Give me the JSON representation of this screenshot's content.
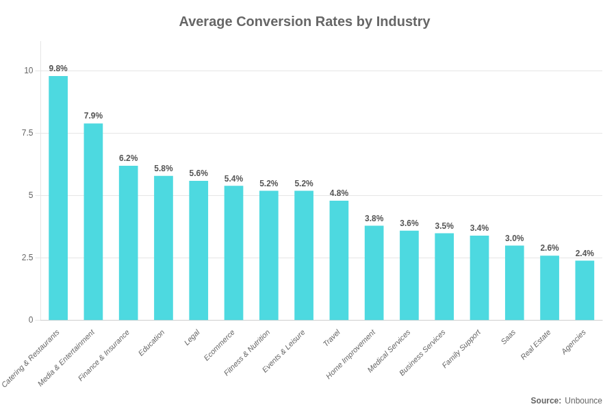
{
  "chart_data": {
    "type": "bar",
    "title": "Average Conversion Rates by Industry",
    "categories": [
      "Catering & Restaurants",
      "Media & Entertainment",
      "Finance & Insurance",
      "Education",
      "Legal",
      "Ecommerce",
      "Fitness & Nutrition",
      "Events & Leisure",
      "Travel",
      "Home Improvement",
      "Medical Services",
      "Business Services",
      "Family Support",
      "Saas",
      "Real Estate",
      "Agencies"
    ],
    "values": [
      9.8,
      7.9,
      6.2,
      5.8,
      5.6,
      5.4,
      5.2,
      5.2,
      4.8,
      3.8,
      3.6,
      3.5,
      3.4,
      3.0,
      2.6,
      2.4
    ],
    "value_labels": [
      "9.8%",
      "7.9%",
      "6.2%",
      "5.8%",
      "5.6%",
      "5.4%",
      "5.2%",
      "5.2%",
      "4.8%",
      "3.8%",
      "3.6%",
      "3.5%",
      "3.4%",
      "3.0%",
      "2.6%",
      "2.4%"
    ],
    "data_labels": true,
    "color": "#4DD9E0",
    "ylim": [
      0,
      11.2
    ],
    "yticks": [
      0,
      2.5,
      5,
      7.5,
      10
    ],
    "grid": true,
    "annotations": [
      "Source:",
      "Unbounce"
    ]
  }
}
